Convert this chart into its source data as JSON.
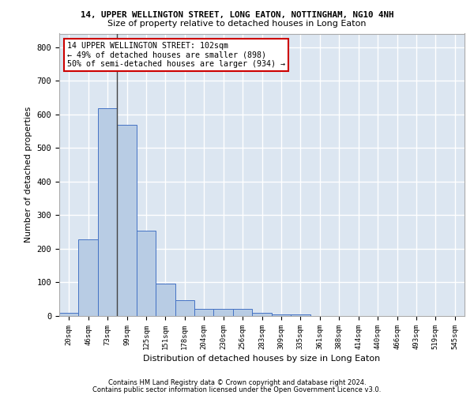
{
  "title1": "14, UPPER WELLINGTON STREET, LONG EATON, NOTTINGHAM, NG10 4NH",
  "title2": "Size of property relative to detached houses in Long Eaton",
  "xlabel": "Distribution of detached houses by size in Long Eaton",
  "ylabel": "Number of detached properties",
  "bins": [
    "20sqm",
    "46sqm",
    "73sqm",
    "99sqm",
    "125sqm",
    "151sqm",
    "178sqm",
    "204sqm",
    "230sqm",
    "256sqm",
    "283sqm",
    "309sqm",
    "335sqm",
    "361sqm",
    "388sqm",
    "414sqm",
    "440sqm",
    "466sqm",
    "493sqm",
    "519sqm",
    "545sqm"
  ],
  "values": [
    10,
    228,
    618,
    568,
    253,
    97,
    48,
    22,
    22,
    22,
    10,
    5,
    5,
    0,
    0,
    0,
    0,
    0,
    0,
    0,
    0
  ],
  "bar_color": "#b8cce4",
  "bar_edge_color": "#4472c4",
  "vline_x": 2.5,
  "annotation_text": "14 UPPER WELLINGTON STREET: 102sqm\n← 49% of detached houses are smaller (898)\n50% of semi-detached houses are larger (934) →",
  "annotation_box_color": "#ffffff",
  "annotation_border_color": "#cc0000",
  "ylim": [
    0,
    840
  ],
  "yticks": [
    0,
    100,
    200,
    300,
    400,
    500,
    600,
    700,
    800
  ],
  "background_color": "#dce6f1",
  "grid_color": "#ffffff",
  "footer1": "Contains HM Land Registry data © Crown copyright and database right 2024.",
  "footer2": "Contains public sector information licensed under the Open Government Licence v3.0."
}
